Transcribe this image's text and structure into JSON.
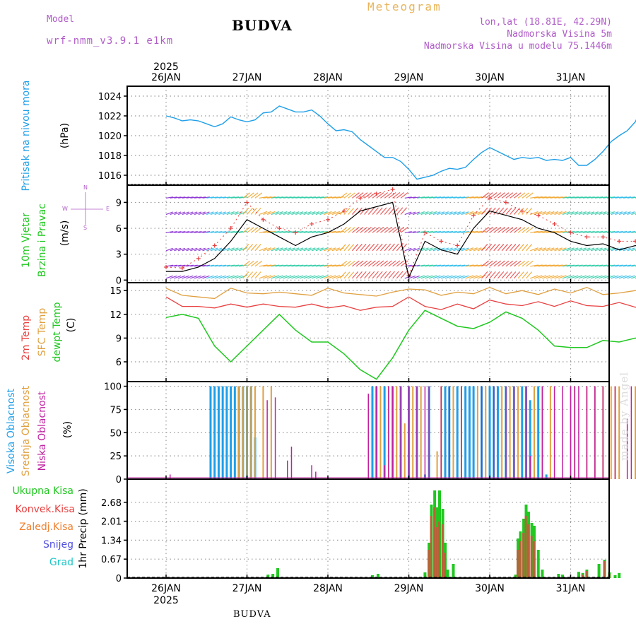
{
  "header": {
    "model_label": "Model",
    "model_name": "wrf-nmm_v3.9.1  e1km",
    "title": "BUDVA",
    "meteogram": "Meteogram",
    "lonlat": "lon,lat (18.81E, 42.29N)",
    "elevation": "Nadmorska Visina 5m",
    "model_elevation": "Nadmorska Visina u modelu 75.1446m"
  },
  "footer": {
    "station": "BUDVA",
    "credit": "made by Angel"
  },
  "colors": {
    "pressure": "#1f9fe8",
    "wind_speed": "#000000",
    "gust": "#e84040",
    "temp2m": "#e84040",
    "sfc_temp": "#e0a040",
    "dewpt": "#20c820",
    "cloud_high": "#1f9fe8",
    "cloud_mid": "#e0a040",
    "cloud_low": "#c020a0",
    "precip_total": "#20c820",
    "precip_conv": "#e84040",
    "freezing_rain": "#f08030",
    "snow": "#5050e0",
    "hail": "#20c8c8"
  },
  "chart_data": [
    {
      "type": "line",
      "panel": "pressure",
      "ylabel_a": "Pritisak na nivou mora",
      "ylabel_b": "(hPa)",
      "ylim": [
        1015,
        1025
      ],
      "yticks": [
        "1016",
        "1018",
        "1020",
        "1022",
        "1024"
      ],
      "xlim": [
        0,
        6
      ],
      "x_top_year": "2025",
      "x_tick_labels": [
        "26JAN",
        "27JAN",
        "28JAN",
        "29JAN",
        "30JAN",
        "31JAN"
      ],
      "grid": true,
      "series": [
        {
          "name": "",
          "x": [
            0.0,
            0.1,
            0.2,
            0.3,
            0.4,
            0.5,
            0.6,
            0.7,
            0.8,
            0.9,
            1.0,
            1.1,
            1.2,
            1.3,
            1.4,
            1.5,
            1.6,
            1.7,
            1.8,
            1.9,
            2.0,
            2.1,
            2.2,
            2.3,
            2.4,
            2.5,
            2.6,
            2.7,
            2.8,
            2.9,
            3.0,
            3.1,
            3.2,
            3.3,
            3.4,
            3.5,
            3.6,
            3.7,
            3.8,
            3.9,
            4.0,
            4.1,
            4.2,
            4.3,
            4.4,
            4.5,
            4.6,
            4.7,
            4.8,
            4.9,
            5.0,
            5.1,
            5.2,
            5.3,
            5.4,
            5.5,
            5.6,
            5.7,
            5.8,
            5.9,
            6.0
          ],
          "values": [
            1022.0,
            1021.8,
            1021.5,
            1021.6,
            1021.5,
            1021.2,
            1020.9,
            1021.2,
            1021.9,
            1021.6,
            1021.4,
            1021.6,
            1022.3,
            1022.4,
            1023.0,
            1022.7,
            1022.4,
            1022.4,
            1022.6,
            1022.0,
            1021.2,
            1020.5,
            1020.6,
            1020.4,
            1019.6,
            1019.0,
            1018.4,
            1017.8,
            1017.8,
            1017.4,
            1016.6,
            1015.6,
            1015.8,
            1016.0,
            1016.4,
            1016.7,
            1016.6,
            1016.8,
            1017.6,
            1018.3,
            1018.8,
            1018.4,
            1018.0,
            1017.6,
            1017.8,
            1017.7,
            1017.8,
            1017.5,
            1017.6,
            1017.5,
            1017.8,
            1017.0,
            1017.0,
            1017.6,
            1018.4,
            1019.4,
            1020.0,
            1020.5,
            1021.4,
            1023.3,
            1023.6
          ]
        }
      ]
    },
    {
      "type": "line",
      "panel": "wind",
      "ylabel_a": "10m Vjetar",
      "ylabel_b": "Brzina i Pravac",
      "ylabel_c": "(m/s)",
      "compass": {
        "n": "N",
        "s": "S",
        "w": "W",
        "e": "E"
      },
      "ylim": [
        -0.3,
        11
      ],
      "yticks": [
        "0",
        "3",
        "6",
        "9"
      ],
      "xlim": [
        0,
        6
      ],
      "grid": true,
      "series": [
        {
          "name": "",
          "x": [
            0.0,
            0.2,
            0.4,
            0.6,
            0.8,
            1.0,
            1.2,
            1.4,
            1.6,
            1.8,
            2.0,
            2.2,
            2.4,
            2.6,
            2.8,
            3.0,
            3.2,
            3.4,
            3.6,
            3.8,
            4.0,
            4.2,
            4.4,
            4.6,
            4.8,
            5.0,
            5.2,
            5.4,
            5.6,
            5.8,
            6.0
          ],
          "values": [
            1.0,
            1.0,
            1.5,
            2.5,
            4.5,
            7.0,
            6.0,
            5.0,
            4.0,
            5.0,
            5.5,
            6.5,
            8.0,
            8.5,
            9.0,
            0.3,
            4.5,
            3.5,
            3.0,
            6.0,
            8.0,
            7.5,
            7.0,
            6.0,
            5.5,
            4.5,
            4.0,
            4.2,
            3.5,
            4.0,
            3.5
          ]
        },
        {
          "name": "",
          "x": [
            0.0,
            0.2,
            0.4,
            0.6,
            0.8,
            1.0,
            1.2,
            1.4,
            1.6,
            1.8,
            2.0,
            2.2,
            2.4,
            2.6,
            2.8,
            3.0,
            3.2,
            3.4,
            3.6,
            3.8,
            4.0,
            4.2,
            4.4,
            4.6,
            4.8,
            5.0,
            5.2,
            5.4,
            5.6,
            5.8,
            6.0
          ],
          "values": [
            1.5,
            1.4,
            2.5,
            4.0,
            6.0,
            9.0,
            7.0,
            6.0,
            5.5,
            6.5,
            7.0,
            8.0,
            9.5,
            10.0,
            10.5,
            0.5,
            5.5,
            4.5,
            4.0,
            7.5,
            9.5,
            9.0,
            8.0,
            7.5,
            6.5,
            5.5,
            5.0,
            5.0,
            4.5,
            4.5,
            4.0
          ]
        }
      ]
    },
    {
      "type": "line",
      "panel": "temperature",
      "ylabel_a": "2m Temp",
      "ylabel_b": "SFC Temp",
      "ylabel_c": "dewpt Temp",
      "ylabel_d": "(C)",
      "ylim": [
        3.5,
        16
      ],
      "yticks": [
        "6",
        "9",
        "12",
        "15"
      ],
      "xlim": [
        0,
        6
      ],
      "grid": true,
      "series": [
        {
          "name": "",
          "x": [
            0.0,
            0.2,
            0.4,
            0.6,
            0.8,
            1.0,
            1.2,
            1.4,
            1.6,
            1.8,
            2.0,
            2.2,
            2.4,
            2.6,
            2.8,
            3.0,
            3.2,
            3.4,
            3.6,
            3.8,
            4.0,
            4.2,
            4.4,
            4.6,
            4.8,
            5.0,
            5.2,
            5.4,
            5.6,
            5.8,
            6.0
          ],
          "values": [
            14.2,
            13.0,
            13.0,
            12.8,
            13.3,
            12.9,
            13.3,
            13.0,
            12.9,
            13.3,
            12.8,
            13.1,
            12.5,
            12.9,
            13.0,
            14.2,
            13.0,
            12.6,
            13.3,
            12.7,
            13.8,
            13.3,
            13.1,
            13.6,
            13.0,
            13.7,
            13.1,
            13.0,
            13.5,
            12.9,
            12.9
          ]
        },
        {
          "name": "",
          "x": [
            0.0,
            0.2,
            0.4,
            0.6,
            0.8,
            1.0,
            1.2,
            1.4,
            1.6,
            1.8,
            2.0,
            2.2,
            2.4,
            2.6,
            2.8,
            3.0,
            3.2,
            3.4,
            3.6,
            3.8,
            4.0,
            4.2,
            4.4,
            4.6,
            4.8,
            5.0,
            5.2,
            5.4,
            5.6,
            5.8,
            6.0
          ],
          "values": [
            15.3,
            14.4,
            14.2,
            14.0,
            15.3,
            14.7,
            14.6,
            14.8,
            14.6,
            14.4,
            15.3,
            14.7,
            14.5,
            14.3,
            14.8,
            15.2,
            15.1,
            14.4,
            14.8,
            14.6,
            15.4,
            14.6,
            15.0,
            14.5,
            15.2,
            14.7,
            15.4,
            14.5,
            14.7,
            15.0,
            15.4
          ]
        },
        {
          "name": "",
          "x": [
            0.0,
            0.2,
            0.4,
            0.6,
            0.8,
            1.0,
            1.2,
            1.4,
            1.6,
            1.8,
            2.0,
            2.2,
            2.4,
            2.6,
            2.8,
            3.0,
            3.2,
            3.4,
            3.6,
            3.8,
            4.0,
            4.2,
            4.4,
            4.6,
            4.8,
            5.0,
            5.2,
            5.4,
            5.6,
            5.8,
            6.0
          ],
          "values": [
            11.6,
            12.0,
            11.5,
            8.0,
            6.0,
            8.0,
            10.0,
            12.0,
            10.0,
            8.5,
            8.5,
            7.0,
            5.0,
            3.8,
            6.5,
            10.0,
            12.5,
            11.5,
            10.5,
            10.2,
            11.0,
            12.3,
            11.5,
            10.0,
            8.0,
            7.8,
            7.8,
            8.7,
            8.5,
            9.0,
            8.3
          ]
        }
      ]
    },
    {
      "type": "bar",
      "panel": "cloud",
      "ylabel_a": "Visoka Oblacnost",
      "ylabel_b": "Srednja Oblacnost",
      "ylabel_c": "Niska Oblacnost",
      "ylabel_d": "(%)",
      "ylim": [
        0,
        105
      ],
      "yticks": [
        "0",
        "25",
        "50",
        "75",
        "100"
      ],
      "xlim": [
        0,
        6
      ],
      "grid": true,
      "series": [
        {
          "name": "",
          "x": [
            0.55,
            0.6,
            0.65,
            0.7,
            0.75,
            0.8,
            0.85,
            0.9,
            0.95,
            1.0,
            1.05,
            1.1,
            2.55,
            2.6,
            2.7,
            2.8,
            2.9,
            3.0,
            3.1,
            3.2,
            3.25,
            3.45,
            3.5,
            3.6,
            3.7,
            3.75,
            3.8,
            3.9,
            4.0,
            4.05,
            4.1,
            4.2,
            4.3,
            4.4,
            4.45,
            4.5,
            4.6,
            4.7
          ],
          "values": [
            100,
            100,
            100,
            100,
            100,
            100,
            100,
            100,
            100,
            100,
            100,
            45,
            100,
            100,
            100,
            100,
            100,
            100,
            100,
            5,
            100,
            100,
            100,
            100,
            100,
            100,
            100,
            100,
            100,
            100,
            100,
            100,
            100,
            100,
            100,
            85,
            100,
            5
          ]
        },
        {
          "name": "",
          "x": [
            0.9,
            0.95,
            1.0,
            1.05,
            1.1,
            1.2,
            1.3,
            2.65,
            2.75,
            2.85,
            2.95,
            3.05,
            3.15,
            3.35,
            3.4,
            3.55,
            3.65,
            3.85,
            3.95,
            4.15,
            4.25,
            4.35,
            4.55,
            4.65,
            4.75,
            5.0,
            5.05,
            5.2,
            5.3,
            5.4,
            5.5,
            5.55,
            5.6,
            5.8,
            5.9
          ],
          "values": [
            100,
            100,
            100,
            100,
            100,
            100,
            100,
            100,
            100,
            100,
            60,
            100,
            100,
            30,
            100,
            100,
            100,
            100,
            100,
            100,
            100,
            100,
            100,
            100,
            100,
            100,
            100,
            100,
            100,
            100,
            100,
            100,
            100,
            100,
            100
          ]
        },
        {
          "name": "",
          "x": [
            0.05,
            1.25,
            1.35,
            1.5,
            1.55,
            1.8,
            1.85,
            2.5,
            2.6,
            2.7,
            2.75,
            2.8,
            2.9,
            3.0,
            3.1,
            3.2,
            3.25,
            3.4,
            3.5,
            3.65,
            3.9,
            4.05,
            4.2,
            4.3,
            4.45,
            4.5,
            4.65,
            4.8,
            4.9,
            5.0,
            5.05,
            5.1,
            5.2,
            5.3,
            5.4,
            5.55,
            5.7,
            5.75,
            5.85
          ],
          "values": [
            5,
            85,
            88,
            20,
            35,
            15,
            8,
            92,
            100,
            15,
            100,
            100,
            100,
            100,
            100,
            100,
            100,
            100,
            100,
            100,
            100,
            100,
            100,
            100,
            100,
            25,
            100,
            100,
            100,
            100,
            100,
            100,
            100,
            100,
            100,
            100,
            65,
            100,
            50
          ]
        }
      ]
    },
    {
      "type": "bar",
      "panel": "precip",
      "ylabel_a": "1hr Precip (mm)",
      "legend": [
        "Ukupna  Kisa",
        "Konvek.Kisa",
        "Zaledj.Kisa",
        "Snijeg",
        "Grad"
      ],
      "ylim": [
        0,
        3.5
      ],
      "yticks": [
        "0",
        "0.67",
        "1.34",
        "2.01",
        "2.68"
      ],
      "xlim": [
        0,
        6
      ],
      "x_tick_labels": [
        "26JAN",
        "27JAN",
        "28JAN",
        "29JAN",
        "30JAN",
        "31JAN"
      ],
      "x_bottom_year": "2025",
      "grid": true,
      "series": [
        {
          "name": "",
          "x": [
            1.26,
            1.32,
            1.38,
            2.55,
            2.62,
            3.2,
            3.25,
            3.28,
            3.32,
            3.35,
            3.38,
            3.42,
            3.45,
            3.48,
            3.55,
            4.32,
            4.35,
            4.38,
            4.42,
            4.45,
            4.48,
            4.52,
            4.55,
            4.6,
            4.65,
            4.85,
            4.9,
            5.1,
            5.15,
            5.2,
            5.35,
            5.42,
            5.48,
            5.55,
            5.6
          ],
          "values": [
            0.12,
            0.15,
            0.35,
            0.1,
            0.15,
            0.2,
            1.25,
            2.6,
            3.1,
            2.5,
            3.1,
            2.45,
            1.25,
            0.3,
            0.5,
            0.12,
            1.4,
            1.65,
            2.1,
            2.6,
            2.35,
            1.95,
            1.85,
            1.0,
            0.3,
            0.15,
            0.12,
            0.22,
            0.18,
            0.3,
            0.5,
            0.65,
            0.2,
            0.1,
            0.18
          ]
        },
        {
          "name": "",
          "x": [
            3.25,
            3.28,
            3.32,
            3.35,
            3.38,
            3.42,
            3.45,
            4.35,
            4.38,
            4.42,
            4.45,
            4.48,
            4.52,
            4.55,
            5.15,
            5.2,
            5.42,
            5.48
          ],
          "values": [
            1.0,
            2.2,
            2.5,
            1.8,
            2.0,
            1.9,
            0.9,
            1.0,
            1.3,
            1.6,
            2.2,
            1.9,
            1.5,
            1.3,
            0.12,
            0.25,
            0.6,
            0.15
          ]
        }
      ]
    }
  ]
}
